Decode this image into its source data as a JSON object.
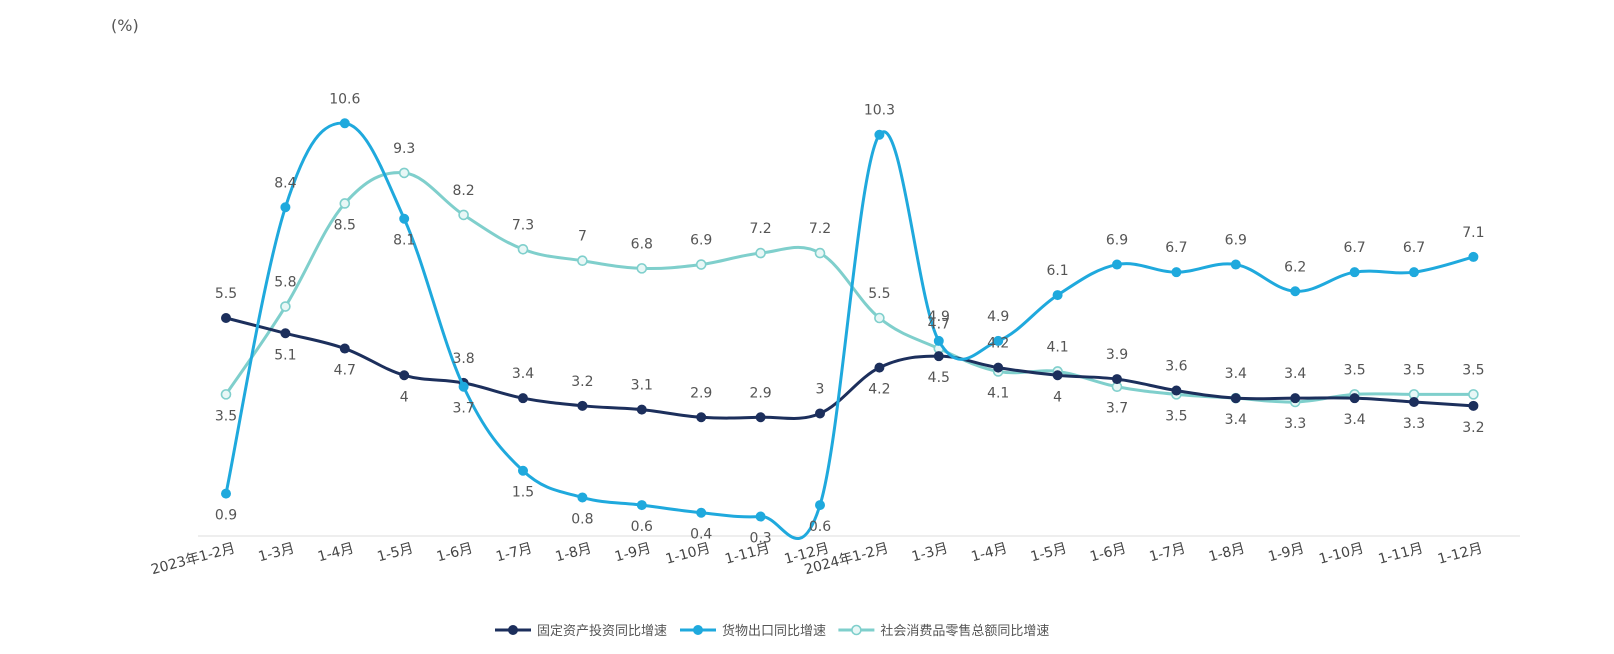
{
  "chart_data": {
    "type": "line",
    "unit_label": "(%)",
    "categories": [
      "2023年1-2月",
      "1-3月",
      "1-4月",
      "1-5月",
      "1-6月",
      "1-7月",
      "1-8月",
      "1-9月",
      "1-10月",
      "1-11月",
      "1-12月",
      "2024年1-2月",
      "1-3月",
      "1-4月",
      "1-5月",
      "1-6月",
      "1-7月",
      "1-8月",
      "1-9月",
      "1-10月",
      "1-11月",
      "1-12月"
    ],
    "series": [
      {
        "name": "固定资产投资同比增速",
        "color": "#1c2f5c",
        "values": [
          5.5,
          5.1,
          4.7,
          4,
          3.8,
          3.4,
          3.2,
          3.1,
          2.9,
          2.9,
          3,
          4.2,
          4.5,
          4.2,
          4,
          3.9,
          3.6,
          3.4,
          3.4,
          3.4,
          3.3,
          3.2
        ]
      },
      {
        "name": "货物出口同比增速",
        "color": "#1fa9dd",
        "values": [
          0.9,
          8.4,
          10.6,
          8.1,
          3.7,
          1.5,
          0.8,
          0.6,
          0.4,
          0.3,
          0.6,
          10.3,
          4.9,
          4.9,
          6.1,
          6.9,
          6.7,
          6.9,
          6.2,
          6.7,
          6.7,
          7.1
        ]
      },
      {
        "name": "社会消费品零售总额同比增速",
        "color": "#7fcfcc",
        "values": [
          3.5,
          5.8,
          8.5,
          9.3,
          8.2,
          7.3,
          7,
          6.8,
          6.9,
          7.2,
          7.2,
          5.5,
          4.7,
          4.1,
          4.1,
          3.7,
          3.5,
          3.4,
          3.3,
          3.5,
          3.5,
          3.5
        ]
      }
    ],
    "ylim": [
      0,
      11
    ],
    "grid": false,
    "legend_position": "bottom"
  }
}
